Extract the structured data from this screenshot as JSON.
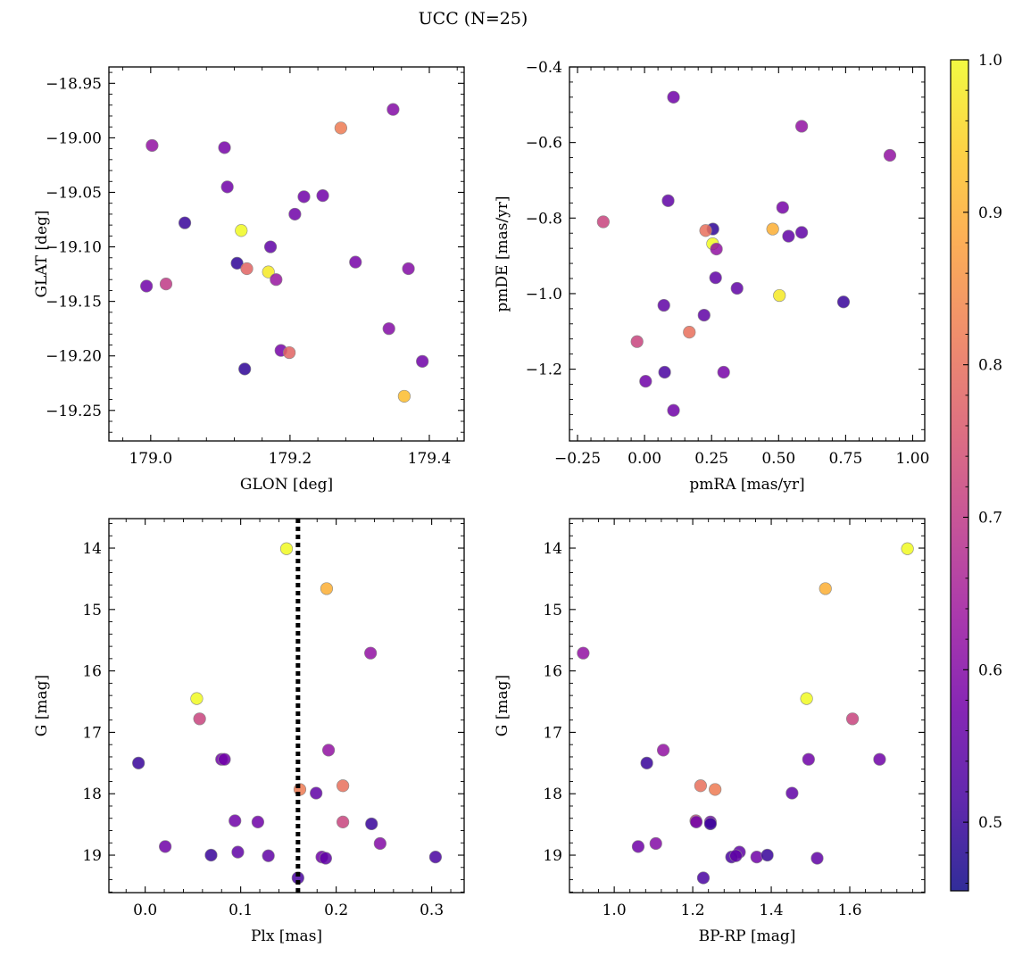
{
  "figure": {
    "title": "UCC (N=25)"
  },
  "colorbar": {
    "min": 0.455,
    "max": 1.0,
    "ticks": [
      0.5,
      0.6,
      0.7,
      0.8,
      0.9,
      1.0
    ],
    "tick_labels": [
      "0.5",
      "0.6",
      "0.7",
      "0.8",
      "0.9",
      "1.0"
    ],
    "colormap": "plasma",
    "stops": [
      "#0d0887",
      "#46039f",
      "#7201a8",
      "#9c179e",
      "#bd3786",
      "#d8576b",
      "#ed7953",
      "#fb9f3a",
      "#fdca26",
      "#f0f921"
    ]
  },
  "chart_data": [
    {
      "type": "scatter",
      "id": "p1",
      "xlabel": "GLON [deg]",
      "ylabel": "GLAT [deg]",
      "xlim": [
        178.94,
        179.45
      ],
      "ylim": [
        -19.278,
        -18.935
      ],
      "xticks": [
        179.0,
        179.2,
        179.4
      ],
      "xtick_labels": [
        "179.0",
        "179.2",
        "179.4"
      ],
      "yticks": [
        -18.95,
        -19.0,
        -19.05,
        -19.1,
        -19.15,
        -19.2,
        -19.25
      ],
      "ytick_labels": [
        "−18.95",
        "−19.00",
        "−19.05",
        "−19.10",
        "−19.15",
        "−19.20",
        "−19.25"
      ],
      "points": [
        {
          "x": 179.002,
          "y": -19.007,
          "c": 0.62
        },
        {
          "x": 179.106,
          "y": -19.009,
          "c": 0.58
        },
        {
          "x": 179.11,
          "y": -19.045,
          "c": 0.57
        },
        {
          "x": 179.049,
          "y": -19.078,
          "c": 0.5
        },
        {
          "x": 179.13,
          "y": -19.085,
          "c": 1.0
        },
        {
          "x": 179.124,
          "y": -19.115,
          "c": 0.49
        },
        {
          "x": 179.138,
          "y": -19.12,
          "c": 0.78
        },
        {
          "x": 179.169,
          "y": -19.123,
          "c": 0.98
        },
        {
          "x": 179.172,
          "y": -19.1,
          "c": 0.55
        },
        {
          "x": 179.18,
          "y": -19.13,
          "c": 0.63
        },
        {
          "x": 178.994,
          "y": -19.136,
          "c": 0.57
        },
        {
          "x": 179.022,
          "y": -19.134,
          "c": 0.7
        },
        {
          "x": 179.207,
          "y": -19.07,
          "c": 0.57
        },
        {
          "x": 179.22,
          "y": -19.054,
          "c": 0.57
        },
        {
          "x": 179.247,
          "y": -19.053,
          "c": 0.57
        },
        {
          "x": 179.273,
          "y": -18.991,
          "c": 0.82
        },
        {
          "x": 179.348,
          "y": -18.974,
          "c": 0.6
        },
        {
          "x": 179.294,
          "y": -19.114,
          "c": 0.58
        },
        {
          "x": 179.37,
          "y": -19.12,
          "c": 0.6
        },
        {
          "x": 179.342,
          "y": -19.175,
          "c": 0.6
        },
        {
          "x": 179.187,
          "y": -19.195,
          "c": 0.58
        },
        {
          "x": 179.199,
          "y": -19.197,
          "c": 0.78
        },
        {
          "x": 179.135,
          "y": -19.212,
          "c": 0.49
        },
        {
          "x": 179.39,
          "y": -19.205,
          "c": 0.57
        },
        {
          "x": 179.364,
          "y": -19.237,
          "c": 0.92
        }
      ]
    },
    {
      "type": "scatter",
      "id": "p2",
      "xlabel": "pmRA [mas/yr]",
      "ylabel": "pmDE [mas/yr]",
      "xlim": [
        -0.28,
        1.045
      ],
      "ylim": [
        -1.39,
        -0.4
      ],
      "xticks": [
        -0.25,
        0.0,
        0.25,
        0.5,
        0.75,
        1.0
      ],
      "xtick_labels": [
        "−0.25",
        "0.00",
        "0.25",
        "0.50",
        "0.75",
        "1.00"
      ],
      "yticks": [
        -0.4,
        -0.6,
        -0.8,
        -1.0,
        -1.2
      ],
      "ytick_labels": [
        "−0.4",
        "−0.6",
        "−0.8",
        "−1.0",
        "−1.2"
      ],
      "points": [
        {
          "x": 0.108,
          "y": -0.48,
          "c": 0.57
        },
        {
          "x": 0.586,
          "y": -0.557,
          "c": 0.62
        },
        {
          "x": 0.915,
          "y": -0.634,
          "c": 0.62
        },
        {
          "x": 0.088,
          "y": -0.754,
          "c": 0.55
        },
        {
          "x": -0.154,
          "y": -0.81,
          "c": 0.72
        },
        {
          "x": 0.255,
          "y": -0.829,
          "c": 0.49
        },
        {
          "x": 0.228,
          "y": -0.833,
          "c": 0.8
        },
        {
          "x": 0.478,
          "y": -0.829,
          "c": 0.9
        },
        {
          "x": 0.515,
          "y": -0.772,
          "c": 0.58
        },
        {
          "x": 0.537,
          "y": -0.848,
          "c": 0.55
        },
        {
          "x": 0.586,
          "y": -0.838,
          "c": 0.55
        },
        {
          "x": 0.254,
          "y": -0.868,
          "c": 1.0
        },
        {
          "x": 0.268,
          "y": -0.882,
          "c": 0.62
        },
        {
          "x": 0.265,
          "y": -0.958,
          "c": 0.55
        },
        {
          "x": 0.345,
          "y": -0.986,
          "c": 0.55
        },
        {
          "x": 0.503,
          "y": -1.005,
          "c": 0.98
        },
        {
          "x": 0.742,
          "y": -1.022,
          "c": 0.5
        },
        {
          "x": 0.072,
          "y": -1.031,
          "c": 0.55
        },
        {
          "x": 0.222,
          "y": -1.057,
          "c": 0.55
        },
        {
          "x": -0.028,
          "y": -1.127,
          "c": 0.72
        },
        {
          "x": 0.167,
          "y": -1.102,
          "c": 0.8
        },
        {
          "x": 0.075,
          "y": -1.208,
          "c": 0.52
        },
        {
          "x": 0.295,
          "y": -1.208,
          "c": 0.58
        },
        {
          "x": 0.004,
          "y": -1.232,
          "c": 0.57
        },
        {
          "x": 0.108,
          "y": -1.309,
          "c": 0.57
        }
      ]
    },
    {
      "type": "scatter",
      "id": "p3",
      "xlabel": "Plx [mas]",
      "ylabel": "G [mag]",
      "xlim": [
        -0.038,
        0.334
      ],
      "ylim": [
        19.61,
        13.52
      ],
      "xticks": [
        0.0,
        0.1,
        0.2,
        0.3
      ],
      "xtick_labels": [
        "0.0",
        "0.1",
        "0.2",
        "0.3"
      ],
      "yticks": [
        14,
        15,
        16,
        17,
        18,
        19
      ],
      "ytick_labels": [
        "14",
        "15",
        "16",
        "17",
        "18",
        "19"
      ],
      "vline": 0.16,
      "points": [
        {
          "x": 0.148,
          "y": 14.01,
          "c": 1.0
        },
        {
          "x": 0.19,
          "y": 14.66,
          "c": 0.9
        },
        {
          "x": 0.236,
          "y": 15.71,
          "c": 0.62
        },
        {
          "x": 0.054,
          "y": 16.45,
          "c": 1.0
        },
        {
          "x": 0.057,
          "y": 16.78,
          "c": 0.72
        },
        {
          "x": -0.007,
          "y": 17.5,
          "c": 0.5
        },
        {
          "x": 0.08,
          "y": 17.44,
          "c": 0.57
        },
        {
          "x": 0.083,
          "y": 17.44,
          "c": 0.57
        },
        {
          "x": 0.192,
          "y": 17.29,
          "c": 0.62
        },
        {
          "x": 0.162,
          "y": 17.93,
          "c": 0.82
        },
        {
          "x": 0.207,
          "y": 17.87,
          "c": 0.8
        },
        {
          "x": 0.179,
          "y": 17.99,
          "c": 0.55
        },
        {
          "x": 0.094,
          "y": 18.44,
          "c": 0.57
        },
        {
          "x": 0.118,
          "y": 18.46,
          "c": 0.57
        },
        {
          "x": 0.207,
          "y": 18.46,
          "c": 0.72
        },
        {
          "x": 0.237,
          "y": 18.49,
          "c": 0.5
        },
        {
          "x": 0.021,
          "y": 18.86,
          "c": 0.57
        },
        {
          "x": 0.246,
          "y": 18.81,
          "c": 0.6
        },
        {
          "x": 0.069,
          "y": 19.0,
          "c": 0.5
        },
        {
          "x": 0.097,
          "y": 18.95,
          "c": 0.55
        },
        {
          "x": 0.129,
          "y": 19.01,
          "c": 0.55
        },
        {
          "x": 0.185,
          "y": 19.03,
          "c": 0.57
        },
        {
          "x": 0.189,
          "y": 19.05,
          "c": 0.55
        },
        {
          "x": 0.304,
          "y": 19.03,
          "c": 0.52
        },
        {
          "x": 0.16,
          "y": 19.37,
          "c": 0.52
        }
      ]
    },
    {
      "type": "scatter",
      "id": "p4",
      "xlabel": "BP-RP [mag]",
      "ylabel": "G [mag]",
      "xlim": [
        0.886,
        1.791
      ],
      "ylim": [
        19.61,
        13.52
      ],
      "xticks": [
        1.0,
        1.2,
        1.4,
        1.6
      ],
      "xtick_labels": [
        "1.0",
        "1.2",
        "1.4",
        "1.6"
      ],
      "yticks": [
        14,
        15,
        16,
        17,
        18,
        19
      ],
      "ytick_labels": [
        "14",
        "15",
        "16",
        "17",
        "18",
        "19"
      ],
      "points": [
        {
          "x": 1.747,
          "y": 14.01,
          "c": 1.0
        },
        {
          "x": 1.538,
          "y": 14.66,
          "c": 0.9
        },
        {
          "x": 0.921,
          "y": 15.71,
          "c": 0.62
        },
        {
          "x": 1.49,
          "y": 16.45,
          "c": 1.0
        },
        {
          "x": 1.607,
          "y": 16.78,
          "c": 0.72
        },
        {
          "x": 1.125,
          "y": 17.29,
          "c": 0.62
        },
        {
          "x": 1.083,
          "y": 17.5,
          "c": 0.5
        },
        {
          "x": 1.495,
          "y": 17.44,
          "c": 0.57
        },
        {
          "x": 1.676,
          "y": 17.44,
          "c": 0.57
        },
        {
          "x": 1.22,
          "y": 17.87,
          "c": 0.8
        },
        {
          "x": 1.257,
          "y": 17.93,
          "c": 0.82
        },
        {
          "x": 1.453,
          "y": 17.99,
          "c": 0.55
        },
        {
          "x": 1.208,
          "y": 18.44,
          "c": 0.72
        },
        {
          "x": 1.209,
          "y": 18.46,
          "c": 0.57
        },
        {
          "x": 1.245,
          "y": 18.46,
          "c": 0.57
        },
        {
          "x": 1.245,
          "y": 18.49,
          "c": 0.5
        },
        {
          "x": 1.061,
          "y": 18.86,
          "c": 0.57
        },
        {
          "x": 1.106,
          "y": 18.81,
          "c": 0.6
        },
        {
          "x": 1.319,
          "y": 18.95,
          "c": 0.55
        },
        {
          "x": 1.299,
          "y": 19.03,
          "c": 0.52
        },
        {
          "x": 1.31,
          "y": 19.01,
          "c": 0.55
        },
        {
          "x": 1.363,
          "y": 19.03,
          "c": 0.57
        },
        {
          "x": 1.39,
          "y": 19.0,
          "c": 0.5
        },
        {
          "x": 1.517,
          "y": 19.05,
          "c": 0.55
        },
        {
          "x": 1.227,
          "y": 19.37,
          "c": 0.52
        }
      ]
    }
  ]
}
